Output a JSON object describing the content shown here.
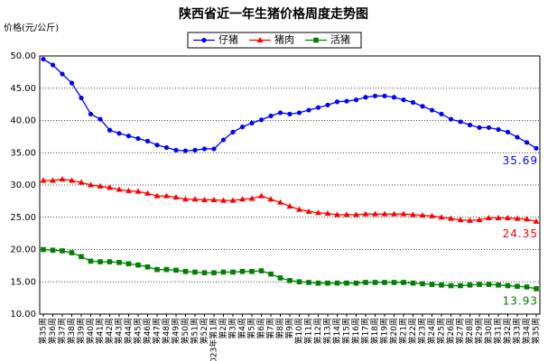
{
  "chart_data": {
    "type": "line",
    "title": "陕西省近一年生猪价格周度走势图",
    "y_label": "价格(元/公斤)",
    "categories": [
      "第35周",
      "第36周",
      "第37周",
      "第38周",
      "第39周",
      "第40周",
      "第41周",
      "第42周",
      "第43周",
      "第44周",
      "第45周",
      "第46周",
      "第47周",
      "第48周",
      "第49周",
      "第50周",
      "第51周",
      "第52周",
      "2023年第1周",
      "第2周",
      "第3周",
      "第4周",
      "第5周",
      "第6周",
      "第7周",
      "第8周",
      "第9周",
      "第10周",
      "第11周",
      "第12周",
      "第13周",
      "第14周",
      "第15周",
      "第16周",
      "第17周",
      "第18周",
      "第19周",
      "第20周",
      "第21周",
      "第22周",
      "第23周",
      "第24周",
      "第25周",
      "第26周",
      "第27周",
      "第28周",
      "第29周",
      "第30周",
      "第31周",
      "第32周",
      "第33周",
      "第34周",
      "第35周"
    ],
    "series": [
      {
        "name": "仔猪",
        "color": "#0000ff",
        "marker": "circle",
        "values": [
          49.5,
          48.6,
          47.2,
          45.8,
          43.5,
          41.0,
          40.2,
          38.5,
          38.0,
          37.6,
          37.2,
          36.8,
          36.2,
          35.8,
          35.4,
          35.3,
          35.4,
          35.6,
          35.6,
          37.0,
          38.2,
          39.0,
          39.6,
          40.1,
          40.7,
          41.2,
          41.0,
          41.2,
          41.6,
          42.0,
          42.4,
          42.9,
          43.0,
          43.2,
          43.6,
          43.8,
          43.8,
          43.6,
          43.2,
          42.8,
          42.2,
          41.6,
          41.0,
          40.2,
          39.8,
          39.3,
          38.9,
          38.9,
          38.6,
          38.2,
          37.4,
          36.6,
          35.69
        ]
      },
      {
        "name": "猪肉",
        "color": "#ff0000",
        "marker": "triangle",
        "values": [
          30.7,
          30.7,
          30.9,
          30.7,
          30.4,
          30.0,
          29.8,
          29.6,
          29.3,
          29.1,
          29.0,
          28.7,
          28.3,
          28.3,
          28.1,
          27.8,
          27.8,
          27.7,
          27.7,
          27.6,
          27.6,
          27.8,
          27.9,
          28.3,
          27.8,
          27.3,
          26.7,
          26.2,
          25.9,
          25.7,
          25.6,
          25.4,
          25.4,
          25.4,
          25.5,
          25.5,
          25.5,
          25.5,
          25.5,
          25.4,
          25.3,
          25.2,
          25.0,
          24.8,
          24.6,
          24.5,
          24.6,
          24.9,
          24.9,
          24.9,
          24.8,
          24.7,
          24.35
        ]
      },
      {
        "name": "活猪",
        "color": "#008000",
        "marker": "square",
        "values": [
          20.0,
          19.9,
          19.8,
          19.5,
          18.9,
          18.2,
          18.1,
          18.1,
          18.0,
          17.8,
          17.6,
          17.3,
          16.9,
          16.9,
          16.8,
          16.6,
          16.5,
          16.4,
          16.4,
          16.5,
          16.5,
          16.6,
          16.6,
          16.7,
          16.2,
          15.6,
          15.2,
          15.0,
          14.9,
          14.8,
          14.8,
          14.8,
          14.8,
          14.8,
          14.9,
          14.9,
          14.9,
          14.9,
          14.9,
          14.8,
          14.7,
          14.6,
          14.5,
          14.4,
          14.4,
          14.5,
          14.6,
          14.6,
          14.5,
          14.4,
          14.3,
          14.2,
          13.93
        ]
      }
    ],
    "ylim": [
      10,
      50
    ],
    "yticks": [
      {
        "value": 10,
        "label": "10.00"
      },
      {
        "value": 15,
        "label": "15.00"
      },
      {
        "value": 20,
        "label": "20.00"
      },
      {
        "value": 25,
        "label": "25.00"
      },
      {
        "value": 30,
        "label": "30.00"
      },
      {
        "value": 35,
        "label": "35.00"
      },
      {
        "value": 40,
        "label": "40.00"
      },
      {
        "value": 45,
        "label": "45.00"
      },
      {
        "value": 50,
        "label": "50.00"
      }
    ],
    "grid": true
  }
}
